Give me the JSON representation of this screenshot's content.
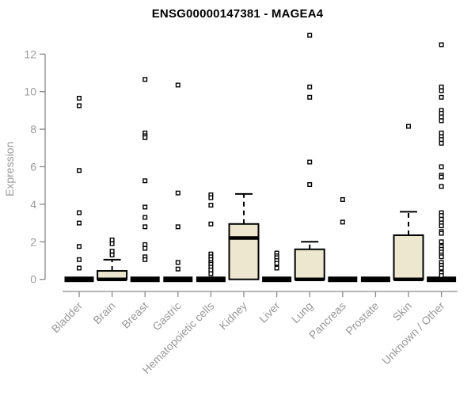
{
  "chart_data": {
    "type": "box",
    "title": "ENSG00000147381 - MAGEA4",
    "ylabel": "Expression",
    "xlabel": "",
    "ylim": [
      0,
      12
    ],
    "yticks": [
      0,
      2,
      4,
      6,
      8,
      10,
      12
    ],
    "grid": false,
    "legend": "none",
    "categories": [
      "Bladder",
      "Brain",
      "Breast",
      "Gastric",
      "Hematopoietic cells",
      "Kidney",
      "Liver",
      "Lung",
      "Pancreas",
      "Prostate",
      "Skin",
      "Unknown / Other"
    ],
    "boxes": [
      {
        "category": "Bladder",
        "q1": 0,
        "median": 0,
        "q3": 0,
        "whisker_low": 0,
        "whisker_high": 0,
        "outliers": [
          9.65,
          9.25,
          5.8,
          3.55,
          3.0,
          1.75,
          1.05,
          0.6
        ]
      },
      {
        "category": "Brain",
        "q1": 0,
        "median": 0,
        "q3": 0.45,
        "whisker_low": 0,
        "whisker_high": 1.05,
        "outliers": [
          2.1,
          1.9,
          1.5,
          1.3
        ]
      },
      {
        "category": "Breast",
        "q1": 0,
        "median": 0,
        "q3": 0,
        "whisker_low": 0,
        "whisker_high": 0,
        "outliers": [
          10.65,
          7.8,
          7.65,
          7.55,
          5.25,
          3.85,
          3.3,
          2.8,
          1.85,
          1.65,
          1.2,
          1.05
        ]
      },
      {
        "category": "Gastric",
        "q1": 0,
        "median": 0,
        "q3": 0,
        "whisker_low": 0,
        "whisker_high": 0,
        "outliers": [
          10.35,
          4.6,
          2.8,
          0.9,
          0.55
        ]
      },
      {
        "category": "Hematopoietic cells",
        "q1": 0,
        "median": 0,
        "q3": 0,
        "whisker_low": 0,
        "whisker_high": 0,
        "outliers": [
          4.5,
          4.35,
          3.95,
          2.95,
          1.35,
          1.2,
          1.05,
          0.9,
          0.8,
          0.65,
          0.5,
          0.3
        ]
      },
      {
        "category": "Kidney",
        "q1": 0,
        "median": 2.2,
        "q3": 2.95,
        "whisker_low": 0,
        "whisker_high": 4.55,
        "outliers": []
      },
      {
        "category": "Liver",
        "q1": 0,
        "median": 0,
        "q3": 0,
        "whisker_low": 0,
        "whisker_high": 0,
        "outliers": [
          1.4,
          1.25,
          1.15,
          1.0,
          0.85,
          0.6
        ]
      },
      {
        "category": "Lung",
        "q1": 0,
        "median": 0,
        "q3": 1.6,
        "whisker_low": 0,
        "whisker_high": 2.0,
        "outliers": [
          13.0,
          10.25,
          9.7,
          6.25,
          5.05
        ]
      },
      {
        "category": "Pancreas",
        "q1": 0,
        "median": 0,
        "q3": 0,
        "whisker_low": 0,
        "whisker_high": 0,
        "outliers": [
          4.25,
          3.05
        ]
      },
      {
        "category": "Prostate",
        "q1": 0,
        "median": 0,
        "q3": 0,
        "whisker_low": 0,
        "whisker_high": 0,
        "outliers": []
      },
      {
        "category": "Skin",
        "q1": 0,
        "median": 0,
        "q3": 2.35,
        "whisker_low": 0,
        "whisker_high": 3.6,
        "outliers": [
          8.15
        ]
      },
      {
        "category": "Unknown / Other",
        "q1": 0,
        "median": 0,
        "q3": 0,
        "whisker_low": 0,
        "whisker_high": 0,
        "outliers": [
          12.5,
          10.25,
          10.05,
          9.7,
          9.0,
          8.85,
          8.65,
          8.45,
          7.8,
          7.6,
          7.45,
          7.25,
          6.0,
          5.55,
          5.45,
          4.95,
          3.55,
          3.4,
          3.2,
          3.0,
          2.85,
          2.55,
          2.45,
          2.0,
          1.75,
          1.6,
          1.45,
          1.3,
          1.2,
          0.9,
          0.75,
          0.6,
          0.35,
          0.2
        ]
      }
    ],
    "colors": {
      "box_fill": "#EDE7CF",
      "box_stroke": "#000000",
      "axis": "#8A8A8A",
      "tick_label": "#999999",
      "title": "#000000",
      "background": "#FFFFFF"
    }
  }
}
